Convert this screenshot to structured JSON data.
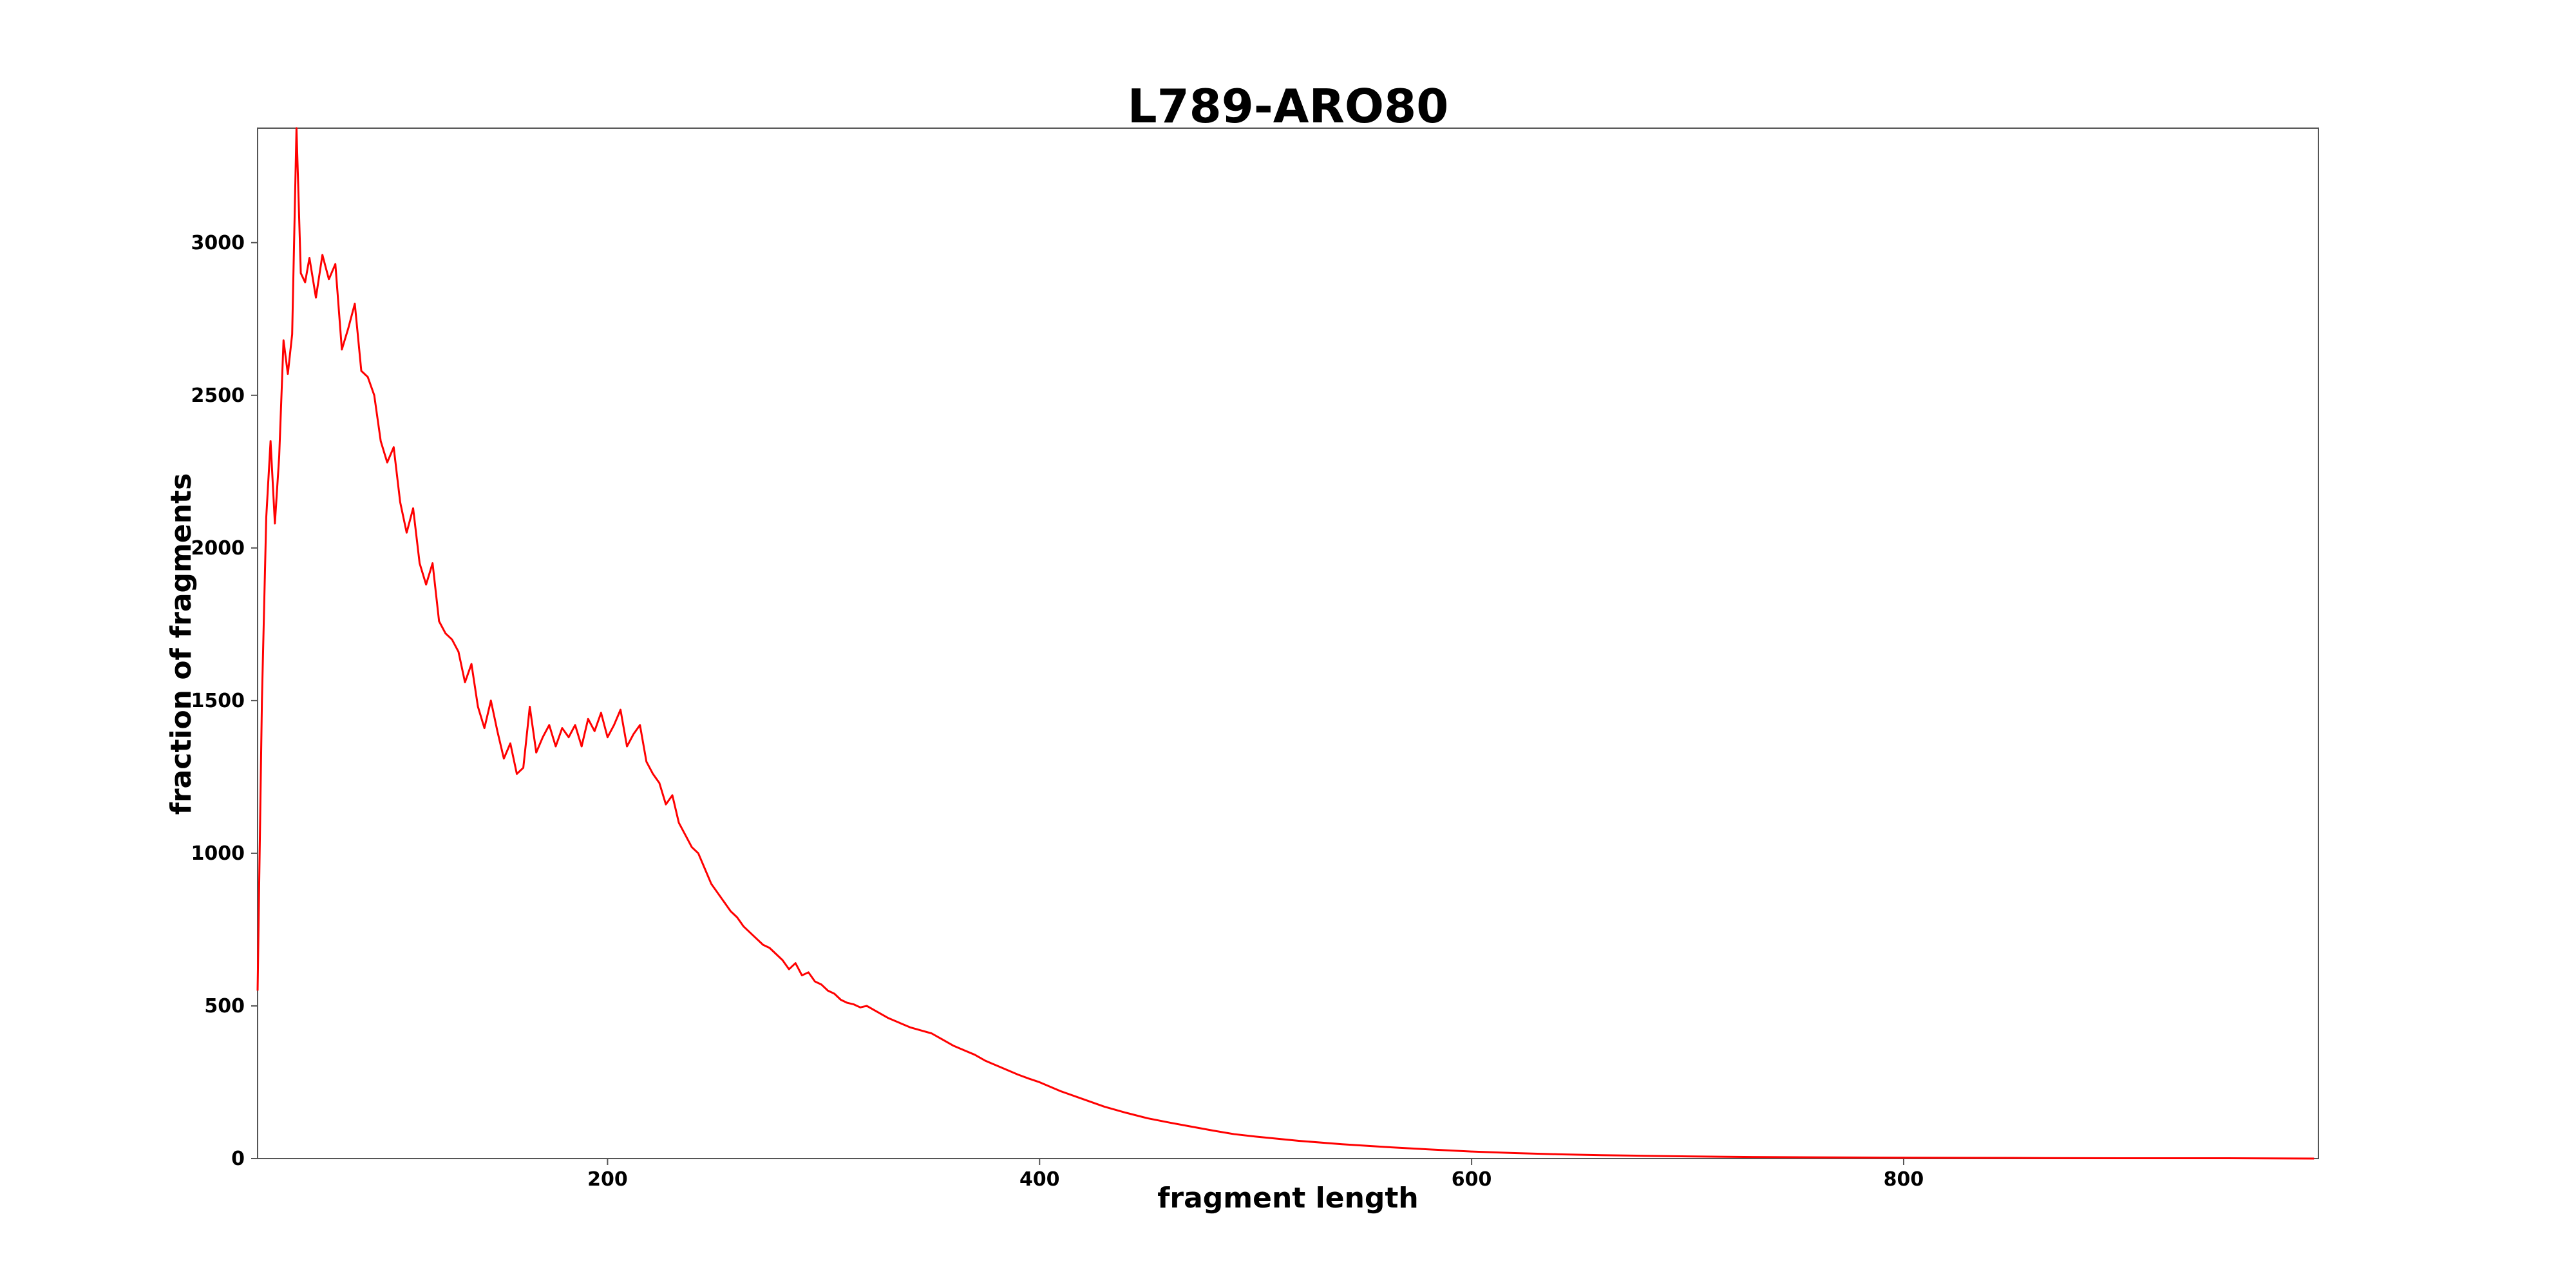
{
  "chart_data": {
    "type": "line",
    "title": "L789-ARO80",
    "xlabel": "fragment length",
    "ylabel": "fraction of fragments",
    "color": "red",
    "x": [
      38,
      40,
      42,
      44,
      46,
      48,
      50,
      52,
      54,
      56,
      58,
      60,
      62,
      65,
      68,
      71,
      74,
      77,
      80,
      83,
      86,
      89,
      92,
      95,
      98,
      101,
      104,
      107,
      110,
      113,
      116,
      119,
      122,
      125,
      128,
      131,
      134,
      137,
      140,
      143,
      146,
      149,
      152,
      155,
      158,
      161,
      164,
      167,
      170,
      173,
      176,
      179,
      182,
      185,
      188,
      191,
      194,
      197,
      200,
      203,
      206,
      209,
      212,
      215,
      218,
      221,
      224,
      227,
      230,
      233,
      236,
      239,
      242,
      245,
      248,
      251,
      254,
      257,
      260,
      263,
      266,
      269,
      272,
      275,
      278,
      281,
      284,
      287,
      290,
      293,
      296,
      299,
      302,
      305,
      308,
      311,
      314,
      317,
      320,
      325,
      330,
      335,
      340,
      345,
      350,
      355,
      360,
      365,
      370,
      375,
      380,
      385,
      390,
      395,
      400,
      410,
      420,
      430,
      440,
      450,
      460,
      470,
      480,
      490,
      500,
      520,
      540,
      560,
      580,
      600,
      620,
      640,
      660,
      680,
      700,
      730,
      760,
      800,
      850,
      900,
      950,
      990
    ],
    "values": [
      550,
      1500,
      2100,
      2350,
      2080,
      2300,
      2680,
      2570,
      2700,
      3375,
      2900,
      2870,
      2950,
      2820,
      2960,
      2880,
      2930,
      2650,
      2720,
      2800,
      2580,
      2560,
      2500,
      2350,
      2280,
      2330,
      2150,
      2050,
      2130,
      1950,
      1880,
      1950,
      1760,
      1720,
      1700,
      1660,
      1560,
      1620,
      1480,
      1410,
      1500,
      1400,
      1310,
      1360,
      1260,
      1280,
      1480,
      1330,
      1380,
      1420,
      1350,
      1410,
      1380,
      1420,
      1350,
      1440,
      1400,
      1460,
      1380,
      1420,
      1470,
      1350,
      1390,
      1420,
      1300,
      1260,
      1230,
      1160,
      1190,
      1100,
      1060,
      1020,
      1000,
      950,
      900,
      870,
      840,
      810,
      790,
      760,
      740,
      720,
      700,
      690,
      670,
      650,
      620,
      640,
      600,
      610,
      580,
      570,
      550,
      540,
      520,
      510,
      505,
      495,
      500,
      480,
      460,
      445,
      430,
      420,
      410,
      390,
      370,
      355,
      340,
      320,
      305,
      290,
      275,
      262,
      250,
      220,
      195,
      170,
      150,
      132,
      118,
      105,
      92,
      80,
      72,
      58,
      47,
      38,
      30,
      23,
      18,
      14,
      11,
      9,
      7,
      5,
      4,
      3,
      2,
      1,
      1,
      0
    ],
    "xlim": [
      38,
      992
    ],
    "ylim": [
      0,
      3375
    ],
    "xticks": [
      200,
      400,
      600,
      800
    ],
    "yticks": [
      0,
      500,
      1000,
      1500,
      2000,
      2500,
      3000
    ]
  }
}
